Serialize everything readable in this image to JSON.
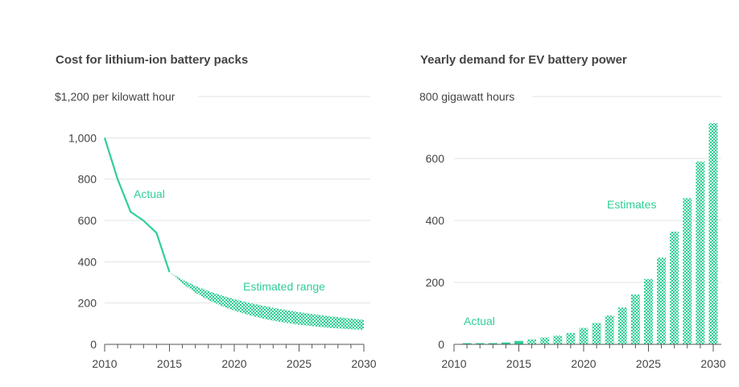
{
  "colors": {
    "accent": "#2fcf95",
    "grid": "#e3e3e3",
    "axis": "#555555"
  },
  "chart_data": [
    {
      "type": "line",
      "title": "Cost for lithium-ion battery packs",
      "ylabel": "$1,200 per kilowatt hour",
      "xlim": [
        2010,
        2030
      ],
      "ylim": [
        0,
        1200
      ],
      "xticks": [
        2010,
        2015,
        2020,
        2025,
        2030
      ],
      "yticks": [
        0,
        200,
        400,
        600,
        800,
        1000
      ],
      "ytick_labels": [
        "0",
        "200",
        "400",
        "600",
        "800",
        "1,000"
      ],
      "top_label_value": 1200,
      "series": [
        {
          "name": "Actual",
          "style": "solid-line",
          "x": [
            2010,
            2011,
            2012,
            2013,
            2014,
            2015
          ],
          "y": [
            1000,
            800,
            642,
            599,
            540,
            350
          ]
        },
        {
          "name": "Estimated range",
          "style": "hatched-band",
          "x": [
            2015,
            2016,
            2017,
            2018,
            2019,
            2020,
            2021,
            2022,
            2023,
            2024,
            2025,
            2026,
            2027,
            2028,
            2029,
            2030
          ],
          "upper": [
            350,
            313,
            283,
            258,
            237,
            219,
            203,
            190,
            177,
            166,
            156,
            147,
            139,
            132,
            125,
            119
          ],
          "lower": [
            350,
            295,
            250,
            215,
            187,
            163,
            144,
            128,
            115,
            104,
            95,
            88,
            82,
            77,
            73,
            70
          ]
        }
      ],
      "annotations": [
        "Actual",
        "Estimated range"
      ]
    },
    {
      "type": "bar",
      "title": "Yearly demand for EV battery power",
      "ylabel": "800 gigawatt hours",
      "xlim": [
        2010,
        2030
      ],
      "ylim": [
        0,
        800
      ],
      "xticks": [
        2010,
        2015,
        2020,
        2025,
        2030
      ],
      "yticks": [
        0,
        200,
        400,
        600
      ],
      "ytick_labels": [
        "0",
        "200",
        "400",
        "600"
      ],
      "top_label_value": 800,
      "categories": [
        2011,
        2012,
        2013,
        2014,
        2015,
        2016,
        2017,
        2018,
        2019,
        2020,
        2021,
        2022,
        2023,
        2024,
        2025,
        2026,
        2027,
        2028,
        2029,
        2030
      ],
      "values": [
        1,
        2,
        4,
        6,
        11,
        16,
        22,
        28,
        37,
        53,
        69,
        93,
        119,
        161,
        211,
        280,
        364,
        472,
        590,
        714
      ],
      "actual_through": 2015,
      "annotations": [
        "Actual",
        "Estimates"
      ]
    }
  ]
}
